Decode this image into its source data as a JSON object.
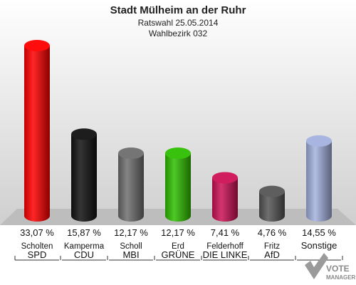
{
  "chart_data": {
    "type": "bar",
    "title": "Stadt Mülheim an der Ruhr",
    "subtitle": "Ratswahl 25.05.2014",
    "subtitle2": "Wahlbezirk 032",
    "categories": [
      "SPD",
      "CDU",
      "MBI",
      "GRÜNE",
      "DIE LINKE",
      "AfD",
      "Sonstige"
    ],
    "candidates": [
      "Scholten",
      "Kamperma",
      "Scholl",
      "Erd",
      "Felderhoff",
      "Fritz",
      ""
    ],
    "values": [
      33.07,
      15.87,
      12.17,
      12.17,
      7.41,
      4.76,
      14.55
    ],
    "value_labels": [
      "33,07 %",
      "15,87 %",
      "12,17 %",
      "12,17 %",
      "7,41 %",
      "4,76 %",
      "14,55 %"
    ],
    "colors": [
      "#ff0000",
      "#111111",
      "#6e6e6e",
      "#2fbf00",
      "#cc1155",
      "#555555",
      "#a3b1de"
    ],
    "ylim": [
      0,
      35
    ]
  },
  "logo": {
    "line1": "VOTE",
    "line2": "MANAGER"
  }
}
